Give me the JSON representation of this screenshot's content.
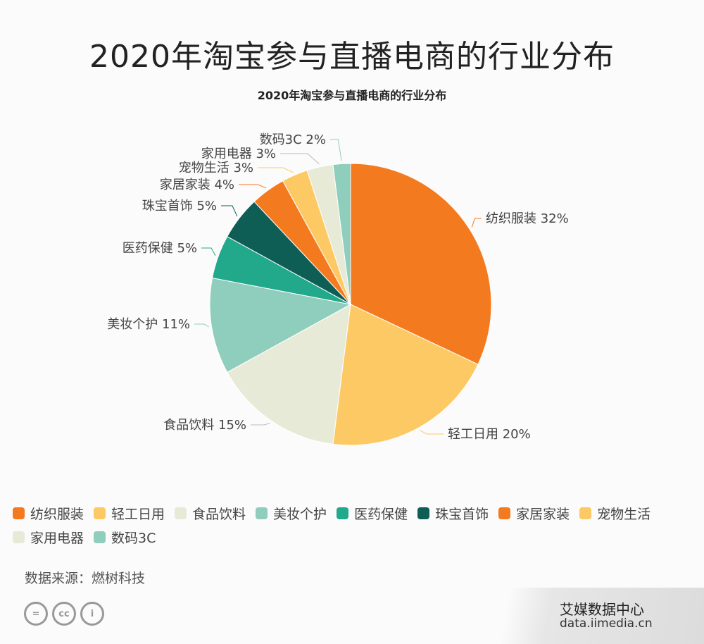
{
  "header": {
    "title": "2020年淘宝参与直播电商的行业分布"
  },
  "chart_data": {
    "type": "pie",
    "title": "2020年淘宝参与直播电商的行业分布",
    "categories": [
      "纺织服装",
      "轻工日用",
      "食品饮料",
      "美妆个护",
      "医药保健",
      "珠宝首饰",
      "家居家装",
      "宠物生活",
      "家用电器",
      "数码3C"
    ],
    "values": [
      32,
      20,
      15,
      11,
      5,
      5,
      4,
      3,
      3,
      2
    ],
    "labels": [
      "纺织服装 32%",
      "轻工日用 20%",
      "食品饮料 15%",
      "美妆个护 11%",
      "医药保健 5%",
      "珠宝首饰 5%",
      "家居家装 4%",
      "宠物生活 3%",
      "家用电器 3%",
      "数码3C 2%"
    ],
    "colors": [
      "#f47a20",
      "#fcc964",
      "#e8ead8",
      "#8fcdbd",
      "#22a88b",
      "#0f5e55",
      "#f47a20",
      "#fcc964",
      "#e8ead8",
      "#8fcdbd"
    ],
    "unit": "%",
    "legend_position": "bottom"
  },
  "footer": {
    "source": "数据来源：燃树科技",
    "cc_icons": [
      "=",
      "cc",
      "i"
    ],
    "watermark_brand": "艾媒数据中心",
    "watermark_url": "data.iimedia.cn"
  }
}
